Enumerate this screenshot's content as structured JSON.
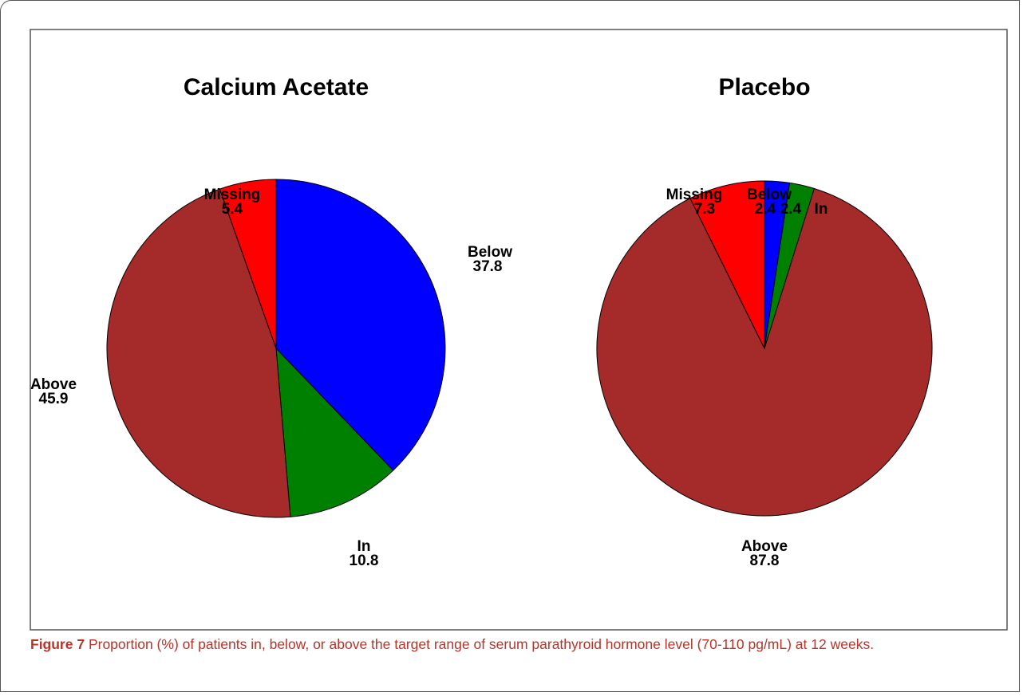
{
  "chart_data": [
    {
      "type": "pie",
      "title": "Calcium Acetate",
      "categories": [
        "Below",
        "In",
        "Above",
        "Missing"
      ],
      "values": [
        37.8,
        10.8,
        45.9,
        5.4
      ],
      "colors": [
        "#0000ff",
        "#008000",
        "#a52a2a",
        "#ff0000"
      ]
    },
    {
      "type": "pie",
      "title": "Placebo",
      "categories": [
        "Below",
        "In",
        "Above",
        "Missing"
      ],
      "values": [
        2.4,
        2.4,
        87.8,
        7.3
      ],
      "colors": [
        "#0000ff",
        "#008000",
        "#a52a2a",
        "#ff0000"
      ]
    }
  ],
  "caption": {
    "label": "Figure 7",
    "text": "Proportion (%) of patients in, below, or above the target range of serum parathyroid hormone level (70-110 pg/mL) at 12 weeks."
  }
}
